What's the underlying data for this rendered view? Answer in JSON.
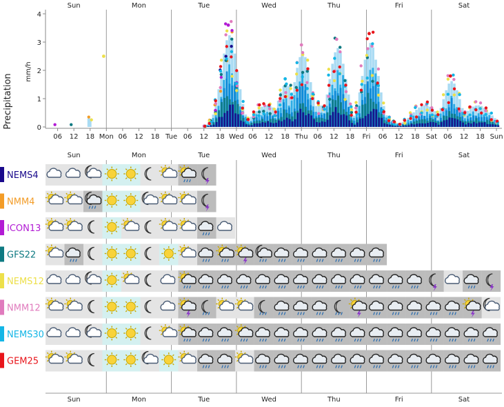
{
  "chart_data": [
    {
      "type": "bar",
      "ylabel": "Precipitation",
      "unit": "mm/h",
      "ylim": [
        0,
        4
      ],
      "yticks": [
        "0",
        "1",
        "2",
        "3",
        "4"
      ],
      "day_labels": [
        "Sun",
        "Mon",
        "Tue",
        "Wed",
        "Thu",
        "Fri",
        "Sat"
      ],
      "x_ticks": [
        "06",
        "12",
        "18",
        "Mon",
        "06",
        "12",
        "18",
        "Tue",
        "06",
        "12",
        "18",
        "Wed",
        "06",
        "12",
        "18",
        "Thu",
        "06",
        "12",
        "18",
        "Fri",
        "06",
        "12",
        "18",
        "Sat",
        "06",
        "12",
        "18",
        "Sun"
      ],
      "grid": "vertical lines at day boundaries",
      "series": [
        {
          "name": "NEMS4",
          "color": "#1a0a8c"
        },
        {
          "name": "NMM4",
          "color": "#f39c27"
        },
        {
          "name": "ICON13",
          "color": "#b21bd4"
        },
        {
          "name": "GFS22",
          "color": "#0e7a82"
        },
        {
          "name": "NEMS12",
          "color": "#ede04a"
        },
        {
          "name": "NMM12",
          "color": "#e07bbd"
        },
        {
          "name": "NEMS30",
          "color": "#14b6e6"
        },
        {
          "name": "GEM25",
          "color": "#e8151b"
        }
      ],
      "peaks": [
        {
          "series": "ICON13",
          "x": "Tue 21h",
          "y": 3.6
        },
        {
          "series": "NMM12",
          "x": "Thu 13h",
          "y": 3.1
        },
        {
          "series": "GEM25",
          "x": "Fri 01h",
          "y": 3.3
        },
        {
          "series": "NMM12",
          "x": "Thu 00h",
          "y": 2.9
        },
        {
          "series": "NEMS12",
          "x": "Sun 23h",
          "y": 2.5
        },
        {
          "series": "GEM25",
          "x": "Sat 07h",
          "y": 1.8
        },
        {
          "series": "NEMS30",
          "x": "Wed 18h",
          "y": 1.7
        }
      ]
    },
    {
      "type": "table",
      "description_of_rows": "weather-symbol rows per model",
      "models": [
        {
          "name": "NEMS4",
          "color": "#1a0a8c",
          "symbols": [
            "cloudy",
            "cloudy",
            "moon-cloud",
            "sun",
            "sun",
            "moon",
            "sun-cloud",
            "sun-cloud-rain",
            "moon-storm"
          ]
        },
        {
          "name": "NMM4",
          "color": "#f39c27",
          "symbols": [
            "sun-cloud",
            "sun-cloud",
            "moon-cloud-rain",
            "sun",
            "sun",
            "moon-cloud",
            "sun-cloud",
            "sun-cloud",
            "moon-storm"
          ]
        },
        {
          "name": "ICON13",
          "color": "#b21bd4",
          "symbols": [
            "sun-cloud",
            "sun-cloud",
            "moon",
            "sun",
            "sun-cloud",
            "moon",
            "sun-cloud",
            "sun-cloud",
            "cloudy-rain",
            "cloudy"
          ]
        },
        {
          "name": "GFS22",
          "color": "#0e7a82",
          "symbols": [
            "sun-cloud",
            "cloudy-rain",
            "moon",
            "sun",
            "sun",
            "moon",
            "sun",
            "sun-cloud",
            "cloudy-rain",
            "sun-cloud-rain",
            "sun-cloud-storm",
            "moon-cloud-rain",
            "cloudy-rain",
            "cloudy-rain",
            "cloudy-rain",
            "cloudy-rain",
            "cloudy-rain",
            "cloudy-rain"
          ]
        },
        {
          "name": "NEMS12",
          "color": "#ede04a",
          "symbols": [
            "cloudy",
            "cloudy",
            "moon-cloud",
            "sun",
            "sun-cloud",
            "moon",
            "cloudy",
            "sun-cloud-rain",
            "cloudy-rain",
            "cloudy-rain",
            "cloudy-rain",
            "cloudy-rain",
            "cloudy-rain",
            "cloudy-rain",
            "cloudy-rain",
            "cloudy-rain",
            "cloudy-rain",
            "cloudy-rain",
            "cloudy-rain",
            "cloudy-rain",
            "moon-storm",
            "cloudy",
            "cloudy-rain",
            "moon-storm"
          ]
        },
        {
          "name": "NMM12",
          "color": "#e07bbd",
          "symbols": [
            "sun-cloud",
            "sun-cloud",
            "moon",
            "sun",
            "sun",
            "moon",
            "cloudy",
            "sun-cloud-storm",
            "moon-rain",
            "sun-cloud",
            "sun-cloud",
            "moon-rain",
            "cloudy-rain",
            "cloudy-rain",
            "cloudy-rain",
            "moon-rain",
            "sun-cloud-storm",
            "cloudy-rain",
            "cloudy-rain",
            "cloudy-rain",
            "cloudy-rain",
            "cloudy-rain",
            "sun-cloud-storm",
            "moon-cloud"
          ]
        },
        {
          "name": "NEMS30",
          "color": "#14b6e6",
          "symbols": [
            "cloudy",
            "cloudy",
            "moon-cloud",
            "sun",
            "sun",
            "moon",
            "sun-cloud",
            "sun-cloud-rain",
            "cloudy-rain",
            "cloudy-rain",
            "sun-cloud-rain",
            "cloudy-rain",
            "cloudy-rain",
            "cloudy-rain",
            "cloudy-rain",
            "cloudy-rain",
            "cloudy-rain",
            "cloudy-rain",
            "cloudy-rain",
            "cloudy-rain",
            "cloudy-rain",
            "cloudy-rain",
            "cloudy-rain",
            "cloudy-rain"
          ]
        },
        {
          "name": "GEM25",
          "color": "#e8151b",
          "symbols": [
            "sun-cloud",
            "sun-cloud",
            "moon",
            "sun",
            "sun",
            "moon-cloud",
            "sun",
            "sun-cloud",
            "cloudy-rain",
            "cloudy-rain",
            "sun-cloud",
            "cloudy-rain",
            "cloudy-rain",
            "cloudy-rain",
            "cloudy-rain",
            "cloudy-rain",
            "cloudy-rain",
            "cloudy-rain",
            "cloudy-rain",
            "cloudy-rain",
            "cloudy-rain",
            "cloudy-rain",
            "cloudy-rain",
            "cloudy-rain"
          ]
        }
      ]
    }
  ]
}
